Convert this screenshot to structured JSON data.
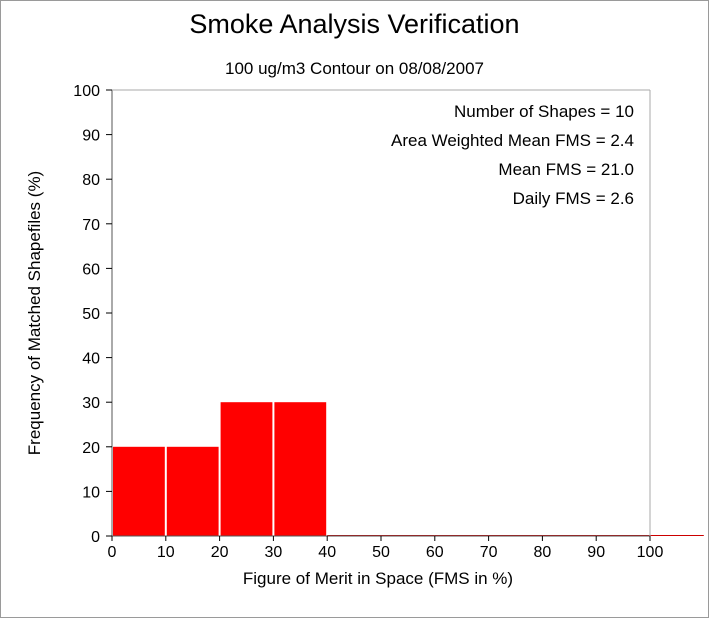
{
  "chart_data": {
    "type": "bar",
    "title": "Smoke Analysis Verification",
    "subtitle": "100 ug/m3 Contour on 08/08/2007",
    "xlabel": "Figure of Merit in Space (FMS in %)",
    "ylabel": "Frequency of Matched Shapefiles (%)",
    "xlim": [
      0,
      100
    ],
    "ylim": [
      0,
      100
    ],
    "x_ticks": [
      0,
      10,
      20,
      30,
      40,
      50,
      60,
      70,
      80,
      90,
      100
    ],
    "y_ticks": [
      0,
      10,
      20,
      30,
      40,
      50,
      60,
      70,
      80,
      90,
      100
    ],
    "bins": [
      {
        "start": 0,
        "end": 10,
        "value": 20
      },
      {
        "start": 10,
        "end": 20,
        "value": 20
      },
      {
        "start": 20,
        "end": 30,
        "value": 30
      },
      {
        "start": 30,
        "end": 40,
        "value": 30
      },
      {
        "start": 40,
        "end": 50,
        "value": 0
      },
      {
        "start": 50,
        "end": 60,
        "value": 0
      },
      {
        "start": 60,
        "end": 70,
        "value": 0
      },
      {
        "start": 70,
        "end": 80,
        "value": 0
      },
      {
        "start": 80,
        "end": 90,
        "value": 0
      },
      {
        "start": 90,
        "end": 100,
        "value": 0
      },
      {
        "start": 100,
        "end": 110,
        "value": 0
      }
    ],
    "bar_color": "#ff0000",
    "grid": false,
    "annotations": [
      "Number of Shapes = 10",
      "Area Weighted Mean FMS = 2.4",
      "Mean FMS = 21.0",
      "Daily FMS = 2.6"
    ]
  }
}
